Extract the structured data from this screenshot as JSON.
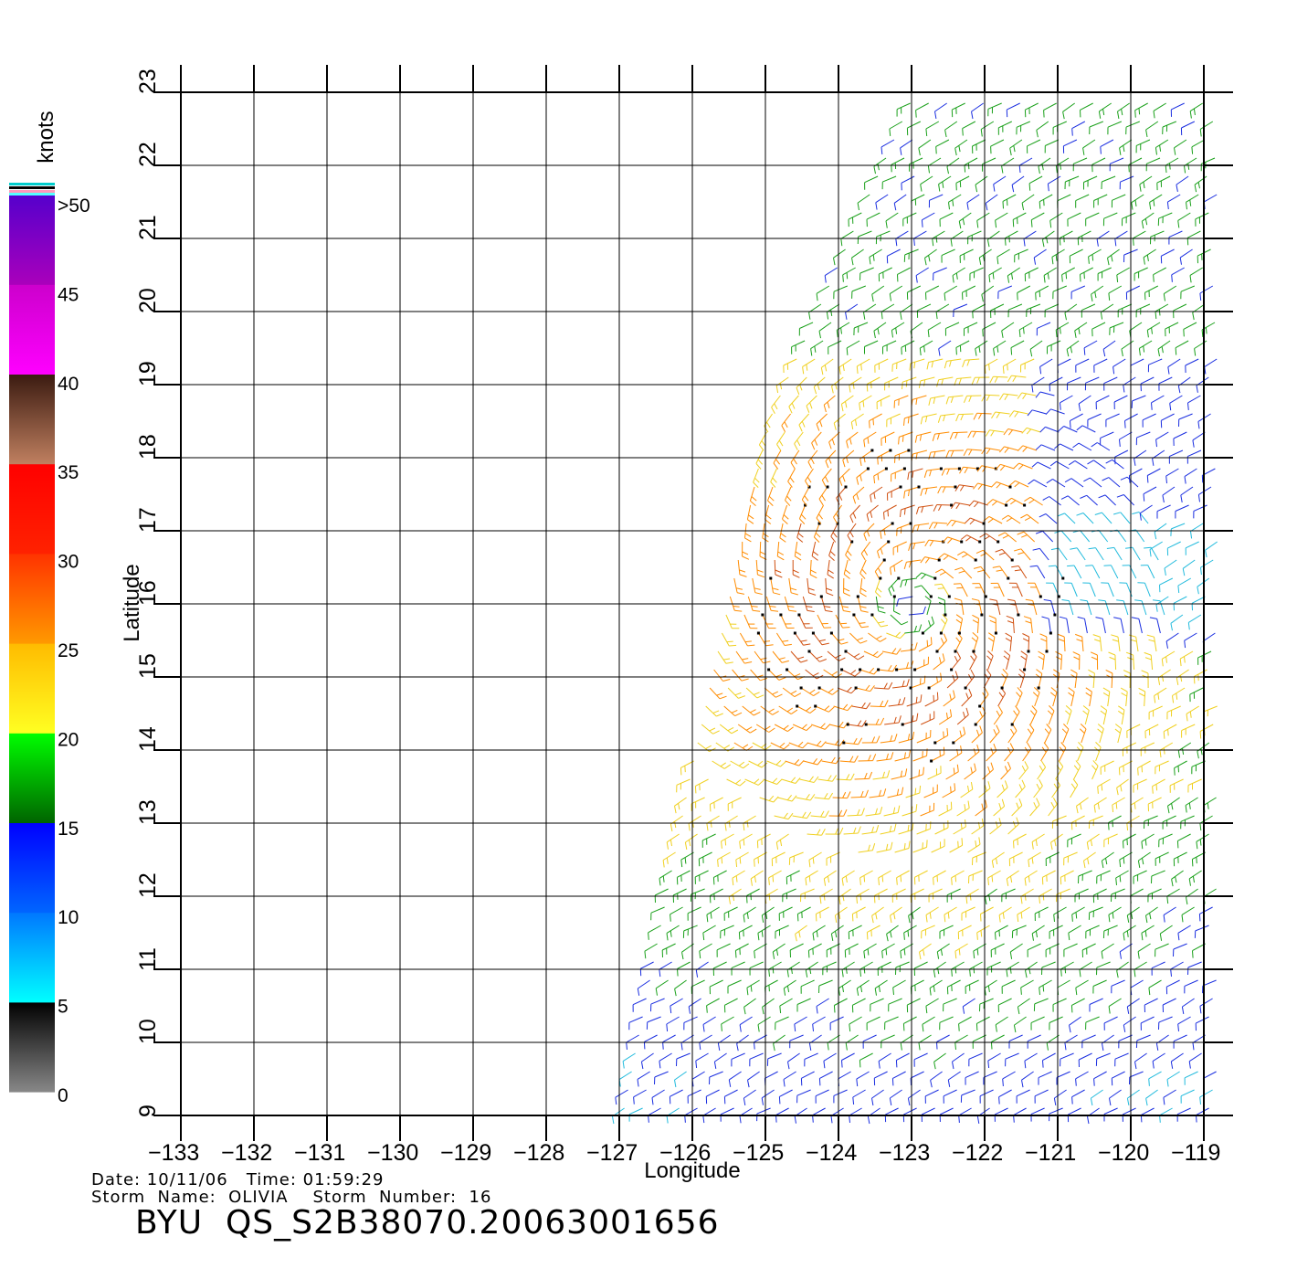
{
  "map": {
    "xlabel": "Longitude",
    "ylabel": "Latitude",
    "lon_range": [
      -133,
      -119
    ],
    "lat_range": [
      9,
      23
    ],
    "lon_ticks": [
      "-133",
      "-132",
      "-131",
      "-130",
      "-129",
      "-128",
      "-127",
      "-126",
      "-125",
      "-124",
      "-123",
      "-122",
      "-121",
      "-120",
      "-119"
    ],
    "lat_ticks": [
      "9",
      "10",
      "11",
      "12",
      "13",
      "14",
      "15",
      "16",
      "17",
      "18",
      "19",
      "20",
      "21",
      "22",
      "23"
    ],
    "grid": true,
    "storm_center": {
      "lon": -123.0,
      "lat": 16.0
    },
    "swath_edge": [
      [
        -123.0,
        23.0
      ],
      [
        -125.0,
        18.5
      ],
      [
        -126.0,
        14.0
      ],
      [
        -127.0,
        9.0
      ]
    ]
  },
  "legend": {
    "unit": "knots",
    "labels": [
      ">50",
      "45",
      "40",
      "35",
      "30",
      "25",
      "20",
      "15",
      "10",
      "5",
      "0"
    ],
    "bands": [
      {
        "from": 0,
        "to": 5,
        "colors": [
          "#888888",
          "#000000"
        ]
      },
      {
        "from": 5,
        "to": 10,
        "colors": [
          "#00ffff",
          "#0077ff"
        ]
      },
      {
        "from": 10,
        "to": 15,
        "colors": [
          "#0066ff",
          "#0000ff"
        ]
      },
      {
        "from": 15,
        "to": 20,
        "colors": [
          "#006400",
          "#00ff00"
        ]
      },
      {
        "from": 20,
        "to": 25,
        "colors": [
          "#ffff22",
          "#ffbb00"
        ]
      },
      {
        "from": 25,
        "to": 30,
        "colors": [
          "#ff9900",
          "#ff3300"
        ]
      },
      {
        "from": 30,
        "to": 35,
        "colors": [
          "#ff2200",
          "#ff0000"
        ]
      },
      {
        "from": 35,
        "to": 40,
        "colors": [
          "#c08060",
          "#3a1a10"
        ]
      },
      {
        "from": 40,
        "to": 45,
        "colors": [
          "#ff00ff",
          "#cc00cc"
        ]
      },
      {
        "from": 45,
        "to": 50,
        "colors": [
          "#aa00bb",
          "#5500cc"
        ]
      }
    ]
  },
  "info": {
    "line1": "Date: 10/11/06   Time: 01:59:29",
    "line2": "Storm  Name:  OLIVIA    Storm  Number:  16",
    "file_id": "BYU  QS_S2B38070.20063001656"
  }
}
